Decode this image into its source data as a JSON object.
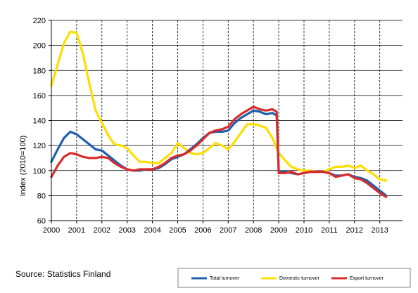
{
  "chart_data": {
    "type": "line",
    "title": "",
    "xlabel": "",
    "ylabel": "Index (2010=100)",
    "ylim": [
      60,
      220
    ],
    "yticks": [
      60,
      80,
      100,
      120,
      140,
      160,
      180,
      200,
      220
    ],
    "xlim": [
      2000,
      2013.9
    ],
    "xticks": [
      2000,
      2001,
      2002,
      2003,
      2004,
      2005,
      2006,
      2007,
      2008,
      2009,
      2010,
      2011,
      2012,
      2013
    ],
    "xtick_labels": [
      "2000",
      "2001",
      "2002",
      "2003",
      "2004",
      "2005",
      "2006",
      "2007",
      "2008",
      "2009",
      "2010",
      "2011",
      "2012",
      "2013"
    ],
    "grid": "vertical dashed lines at years, horizontal solid lines at y ticks",
    "legend_position": "bottom-right",
    "series": [
      {
        "name": "Total turnover",
        "color": "#1f5fae",
        "x": [
          2000.0,
          2000.25,
          2000.5,
          2000.75,
          2001.0,
          2001.25,
          2001.5,
          2001.75,
          2002.0,
          2002.25,
          2002.5,
          2002.75,
          2003.0,
          2003.25,
          2003.5,
          2003.75,
          2004.0,
          2004.25,
          2004.5,
          2004.75,
          2005.0,
          2005.25,
          2005.5,
          2005.75,
          2006.0,
          2006.25,
          2006.5,
          2006.75,
          2007.0,
          2007.25,
          2007.5,
          2007.75,
          2008.0,
          2008.25,
          2008.5,
          2008.75,
          2008.92,
          2009.0,
          2009.25,
          2009.5,
          2009.75,
          2010.0,
          2010.25,
          2010.5,
          2010.75,
          2011.0,
          2011.25,
          2011.5,
          2011.75,
          2012.0,
          2012.25,
          2012.5,
          2012.75,
          2013.0,
          2013.25
        ],
        "values": [
          107,
          117,
          126,
          131,
          129,
          125,
          121,
          117,
          116,
          112,
          108,
          104,
          101,
          100,
          100,
          101,
          101,
          102,
          105,
          109,
          111,
          113,
          117,
          121,
          126,
          130,
          131,
          131,
          132,
          138,
          142,
          145,
          148,
          147,
          145,
          146,
          144,
          99,
          99,
          98,
          97,
          98,
          99,
          99,
          99,
          98,
          96,
          96,
          97,
          95,
          94,
          92,
          88,
          84,
          80
        ]
      },
      {
        "name": "Domestic turnover",
        "color": "#ffdd00",
        "x": [
          2000.0,
          2000.25,
          2000.5,
          2000.75,
          2001.0,
          2001.25,
          2001.5,
          2001.75,
          2002.0,
          2002.25,
          2002.5,
          2002.75,
          2003.0,
          2003.25,
          2003.5,
          2003.75,
          2004.0,
          2004.25,
          2004.5,
          2004.75,
          2005.0,
          2005.25,
          2005.5,
          2005.75,
          2006.0,
          2006.25,
          2006.5,
          2006.75,
          2007.0,
          2007.25,
          2007.5,
          2007.75,
          2008.0,
          2008.25,
          2008.5,
          2008.75,
          2009.0,
          2009.25,
          2009.5,
          2009.75,
          2010.0,
          2010.25,
          2010.5,
          2010.75,
          2011.0,
          2011.25,
          2011.5,
          2011.75,
          2012.0,
          2012.25,
          2012.5,
          2012.75,
          2013.0,
          2013.25
        ],
        "values": [
          168,
          185,
          202,
          211,
          210,
          193,
          170,
          148,
          138,
          128,
          121,
          120,
          118,
          112,
          107,
          107,
          106,
          106,
          110,
          114,
          122,
          118,
          114,
          113,
          114,
          118,
          122,
          120,
          117,
          123,
          130,
          137,
          137,
          136,
          134,
          126,
          114,
          108,
          103,
          101,
          100,
          100,
          99,
          99,
          101,
          103,
          103,
          104,
          102,
          104,
          100,
          97,
          93,
          92
        ]
      },
      {
        "name": "Export turnover",
        "color": "#d92b2b",
        "x": [
          2000.0,
          2000.25,
          2000.5,
          2000.75,
          2001.0,
          2001.25,
          2001.5,
          2001.75,
          2002.0,
          2002.25,
          2002.5,
          2002.75,
          2003.0,
          2003.25,
          2003.5,
          2003.75,
          2004.0,
          2004.25,
          2004.5,
          2004.75,
          2005.0,
          2005.25,
          2005.5,
          2005.75,
          2006.0,
          2006.25,
          2006.5,
          2006.75,
          2007.0,
          2007.25,
          2007.5,
          2007.75,
          2008.0,
          2008.25,
          2008.5,
          2008.75,
          2008.92,
          2009.0,
          2009.25,
          2009.5,
          2009.75,
          2010.0,
          2010.25,
          2010.5,
          2010.75,
          2011.0,
          2011.25,
          2011.5,
          2011.75,
          2012.0,
          2012.25,
          2012.5,
          2012.75,
          2013.0,
          2013.25
        ],
        "values": [
          95,
          104,
          111,
          114,
          113,
          111,
          110,
          110,
          111,
          110,
          106,
          103,
          101,
          100,
          101,
          101,
          101,
          103,
          106,
          110,
          112,
          113,
          116,
          120,
          125,
          130,
          132,
          133,
          135,
          141,
          145,
          148,
          151,
          149,
          148,
          149,
          147,
          98,
          98,
          99,
          97,
          98,
          99,
          99,
          99,
          98,
          95,
          96,
          97,
          94,
          93,
          90,
          86,
          82,
          79
        ]
      }
    ]
  },
  "source": "Source: Statistics Finland"
}
